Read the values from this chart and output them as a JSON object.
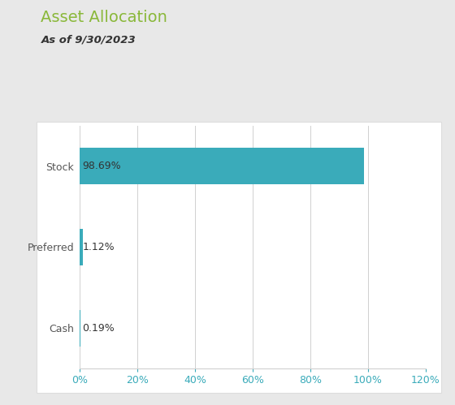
{
  "title": "Asset Allocation",
  "subtitle": "As of 9/30/2023",
  "categories": [
    "Stock",
    "Preferred",
    "Cash"
  ],
  "values": [
    98.69,
    1.12,
    0.19
  ],
  "bar_color": "#3aabba",
  "title_color": "#8ab83a",
  "subtitle_color": "#333333",
  "label_color": "#555555",
  "value_label_color": "#333333",
  "tick_color": "#3aabba",
  "figure_bg_color": "#e8e8e8",
  "card_bg_color": "#ffffff",
  "card_edge_color": "#dddddd",
  "grid_color": "#d0d0d0",
  "xlim": [
    0,
    120
  ],
  "xticks": [
    0,
    20,
    40,
    60,
    80,
    100,
    120
  ],
  "bar_height": 0.45,
  "title_fontsize": 14,
  "subtitle_fontsize": 9.5,
  "axis_label_fontsize": 9,
  "value_fontsize": 9
}
